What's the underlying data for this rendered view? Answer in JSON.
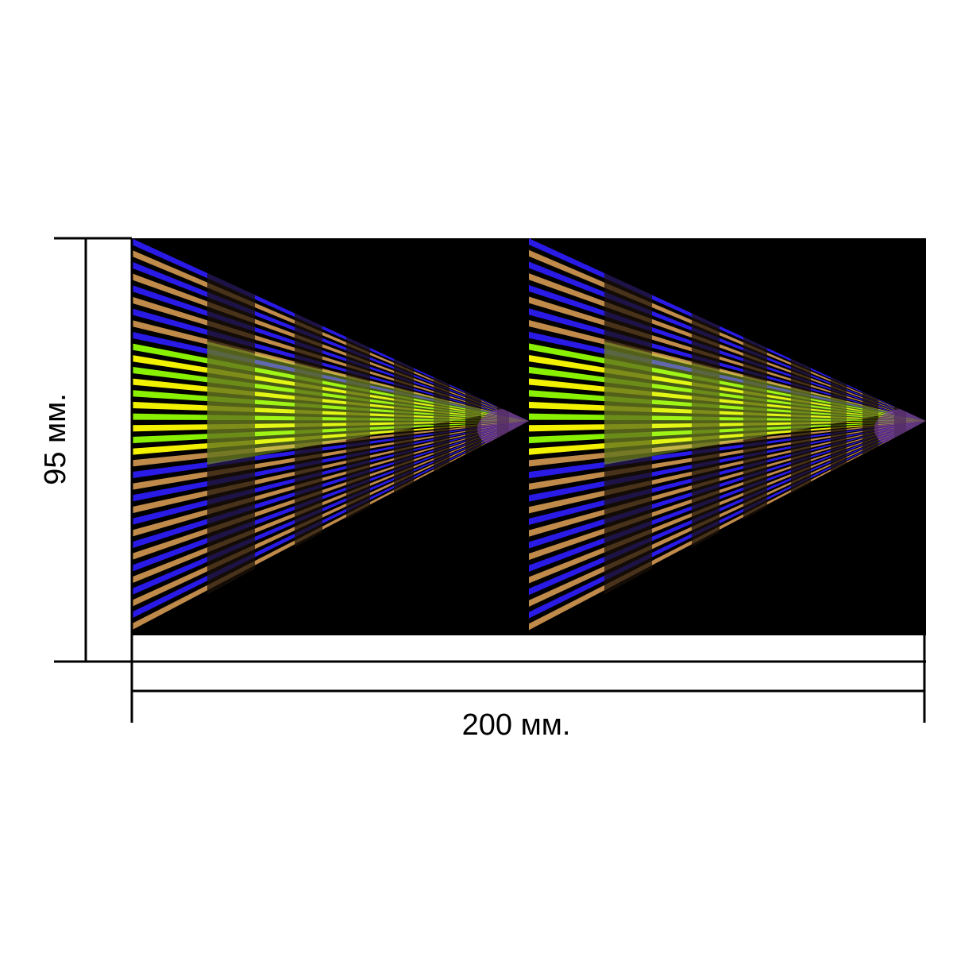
{
  "dimensions": {
    "height_label": "95 мм.",
    "width_label": "200 мм."
  },
  "artwork": {
    "tile_count": 2,
    "background_color": "#000000",
    "stripe_colors": {
      "blue": "#2a1ae6",
      "bronze": "#c08a4a",
      "dark": "#1a1008",
      "yellow": "#f2f200",
      "green": "#88f000",
      "light_green": "#c8ff40"
    }
  }
}
